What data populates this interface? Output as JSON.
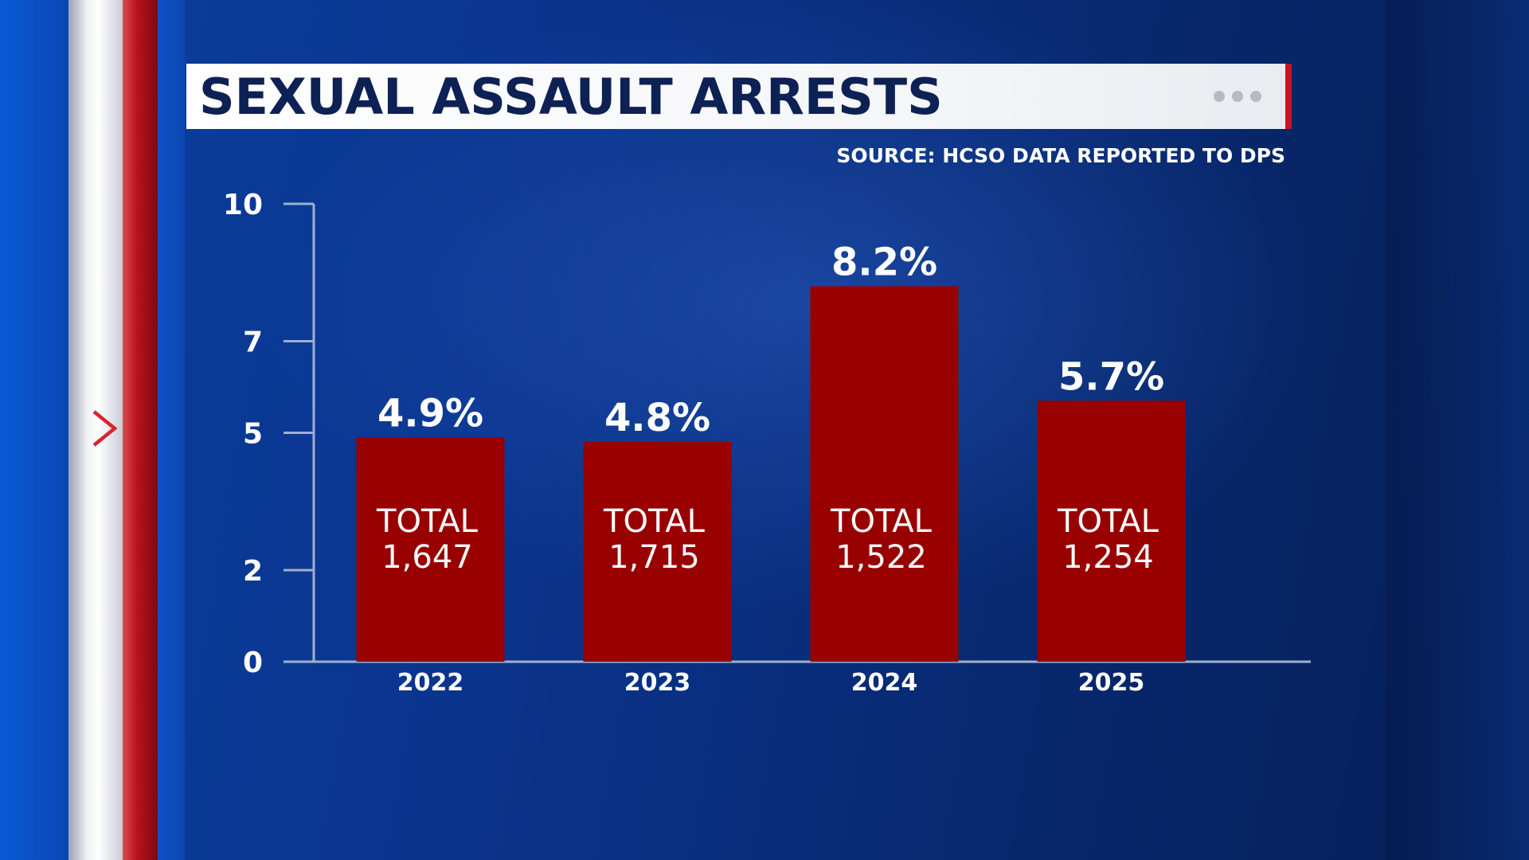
{
  "header": {
    "title": "SEXUAL ASSAULT ARRESTS",
    "source": "SOURCE: HCSO DATA REPORTED TO DPS"
  },
  "colors": {
    "bar": "#990000",
    "axis": "#9fb0cf",
    "title_text": "#0d2155",
    "accent": "#c8141c"
  },
  "icons": {
    "side_marker": "chevron-right-icon",
    "menu": "more-dots-icon"
  },
  "chart_data": {
    "type": "bar",
    "title": "SEXUAL ASSAULT ARRESTS",
    "xlabel": "",
    "ylabel": "",
    "categories": [
      "2022",
      "2023",
      "2024",
      "2025"
    ],
    "values": [
      4.9,
      4.8,
      8.2,
      5.7
    ],
    "value_labels": [
      "4.9%",
      "4.8%",
      "8.2%",
      "5.7%"
    ],
    "total_prefix": "TOTAL",
    "totals": [
      "1,647",
      "1,715",
      "1,522",
      "1,254"
    ],
    "yticks": [
      0,
      2,
      5,
      7,
      10
    ],
    "ylim": [
      0,
      10
    ],
    "grid": false,
    "legend": "none"
  }
}
